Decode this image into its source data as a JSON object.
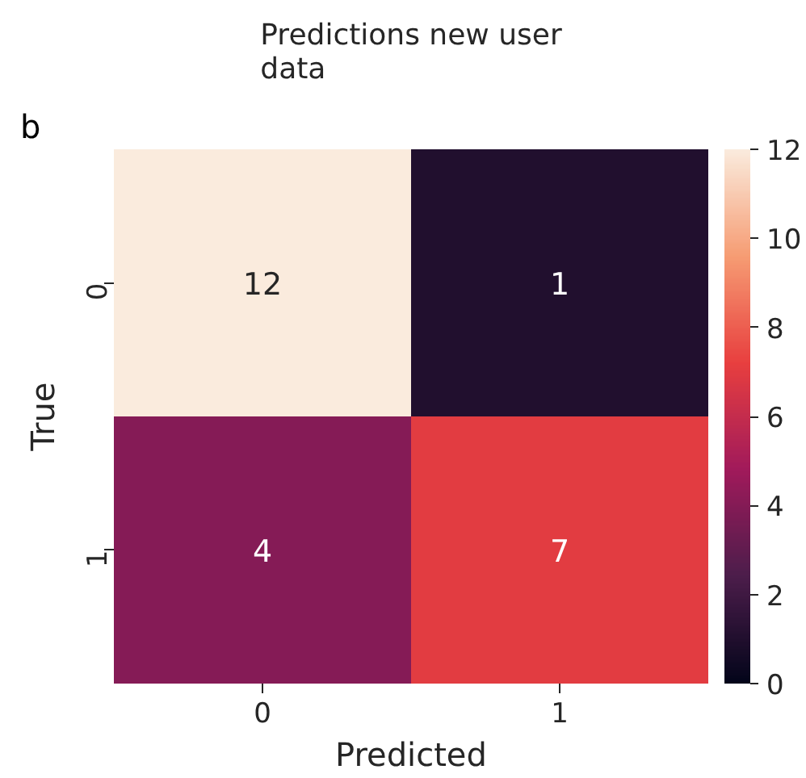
{
  "chart_data": {
    "type": "heatmap",
    "title": "Predictions new user data",
    "xlabel": "Predicted",
    "ylabel": "True",
    "annotations": [
      "b"
    ],
    "categories": [
      "0",
      "1"
    ],
    "y_categories": [
      "0",
      "1"
    ],
    "cells": [
      [
        12,
        1
      ],
      [
        4,
        7
      ]
    ],
    "clim": [
      0,
      12
    ],
    "cticks": [
      0,
      2,
      4,
      6,
      8,
      10,
      12
    ],
    "data_labels": true
  }
}
